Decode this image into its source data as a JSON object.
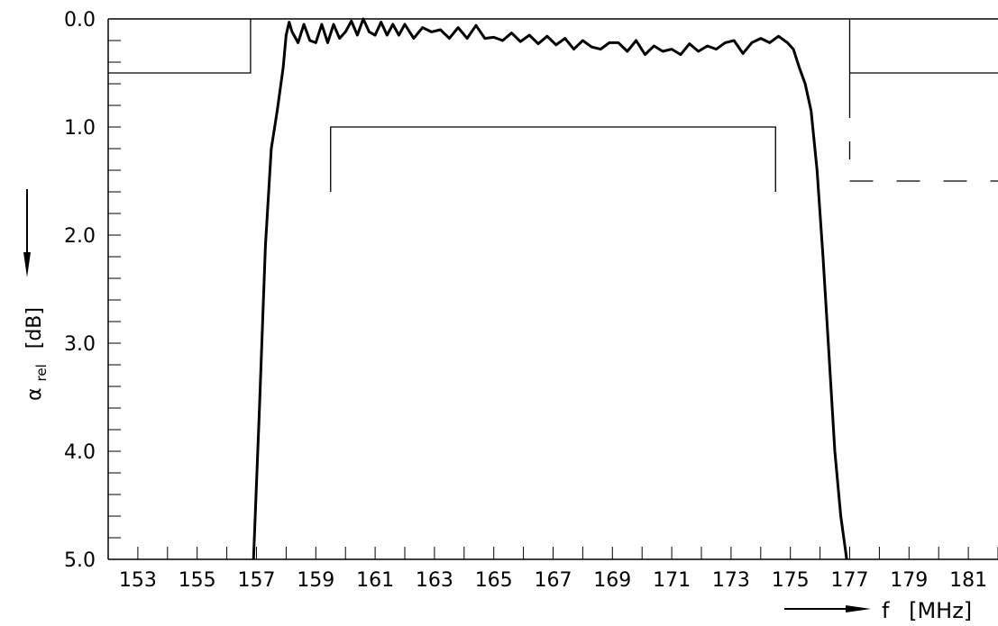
{
  "chart_data": {
    "type": "line",
    "ylabel": "α",
    "ylabel_sub": "rel",
    "ylabel_unit": "[dB]",
    "xlabel": "f",
    "xlabel_unit": "[MHz]",
    "xlim": [
      152,
      182
    ],
    "ylim": [
      0,
      5
    ],
    "y_inverted": true,
    "x_ticks": [
      "153",
      "155",
      "157",
      "159",
      "161",
      "163",
      "165",
      "167",
      "169",
      "171",
      "173",
      "175",
      "177",
      "179",
      "181"
    ],
    "y_ticks": [
      "0.0",
      "1.0",
      "2.0",
      "3.0",
      "4.0",
      "5.0"
    ],
    "grid": false,
    "series": [
      {
        "style": "solid-thick",
        "x": [
          156.9,
          157.1,
          157.3,
          157.5,
          157.7,
          157.9,
          158.0,
          158.1,
          158.2,
          158.4,
          158.6,
          158.8,
          159.0,
          159.2,
          159.4,
          159.6,
          159.8,
          160.0,
          160.2,
          160.4,
          160.6,
          160.8,
          161.0,
          161.2,
          161.4,
          161.6,
          161.8,
          162.0,
          162.3,
          162.6,
          162.9,
          163.2,
          163.5,
          163.8,
          164.1,
          164.4,
          164.7,
          165.0,
          165.3,
          165.6,
          165.9,
          166.2,
          166.5,
          166.8,
          167.1,
          167.4,
          167.7,
          168.0,
          168.3,
          168.6,
          168.9,
          169.2,
          169.5,
          169.8,
          170.1,
          170.4,
          170.7,
          171.0,
          171.3,
          171.6,
          171.9,
          172.2,
          172.5,
          172.8,
          173.1,
          173.4,
          173.7,
          174.0,
          174.3,
          174.6,
          174.9,
          175.1,
          175.3,
          175.5,
          175.7,
          175.9,
          176.1,
          176.3,
          176.5,
          176.7,
          176.9
        ],
        "y": [
          5.0,
          3.6,
          2.1,
          1.2,
          0.85,
          0.45,
          0.15,
          0.03,
          0.12,
          0.22,
          0.05,
          0.2,
          0.22,
          0.05,
          0.22,
          0.05,
          0.18,
          0.12,
          0.02,
          0.15,
          0.0,
          0.12,
          0.15,
          0.03,
          0.15,
          0.05,
          0.15,
          0.05,
          0.18,
          0.08,
          0.12,
          0.1,
          0.18,
          0.08,
          0.18,
          0.06,
          0.18,
          0.17,
          0.2,
          0.13,
          0.21,
          0.15,
          0.23,
          0.16,
          0.24,
          0.18,
          0.28,
          0.2,
          0.26,
          0.28,
          0.22,
          0.22,
          0.3,
          0.2,
          0.33,
          0.25,
          0.3,
          0.28,
          0.33,
          0.23,
          0.3,
          0.25,
          0.28,
          0.22,
          0.2,
          0.32,
          0.22,
          0.18,
          0.22,
          0.16,
          0.22,
          0.28,
          0.45,
          0.6,
          0.85,
          1.4,
          2.2,
          3.1,
          4.0,
          4.6,
          5.0
        ]
      }
    ],
    "limits": [
      {
        "style": "solid",
        "x": [
          152,
          156.8,
          156.8
        ],
        "y": [
          0.5,
          0.5,
          0.0
        ]
      },
      {
        "style": "solid",
        "x": [
          159.5,
          159.5,
          174.5,
          174.5
        ],
        "y": [
          1.6,
          1.0,
          1.0,
          1.6
        ]
      },
      {
        "style": "solid",
        "x": [
          177,
          177
        ],
        "y": [
          0.0,
          0.7
        ]
      },
      {
        "style": "solid",
        "x": [
          177,
          182
        ],
        "y": [
          0.5,
          0.5
        ]
      },
      {
        "style": "dashed",
        "x": [
          177,
          177
        ],
        "y": [
          0.7,
          1.3
        ]
      },
      {
        "style": "dashed",
        "x": [
          177,
          182
        ],
        "y": [
          1.5,
          1.5
        ]
      }
    ]
  }
}
